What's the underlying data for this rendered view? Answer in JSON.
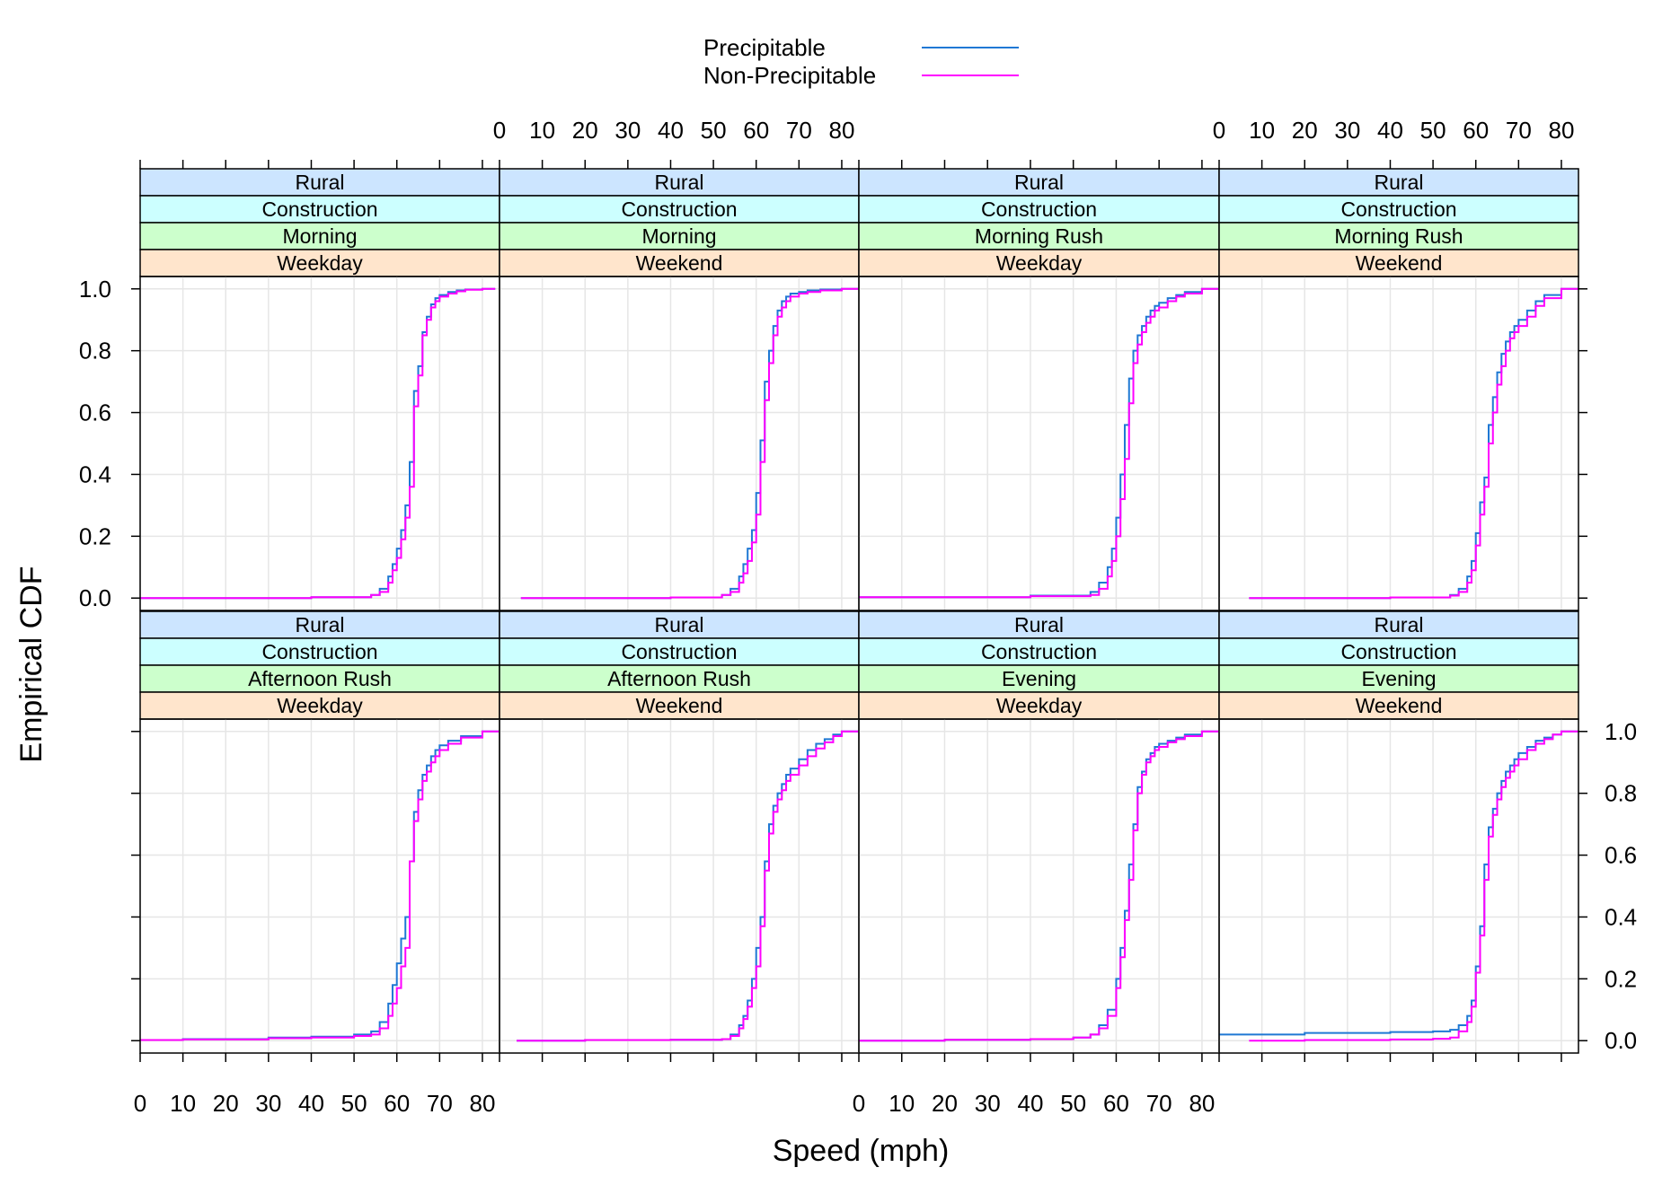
{
  "chart_data": {
    "type": "line",
    "subtype": "ecdf-step-trellis",
    "xlabel": "Speed (mph)",
    "ylabel": "Empirical CDF",
    "xlim": [
      0,
      84
    ],
    "ylim": [
      -0.04,
      1.04
    ],
    "x_ticks": [
      0,
      10,
      20,
      30,
      40,
      50,
      60,
      70,
      80
    ],
    "y_ticks": [
      0.0,
      0.2,
      0.4,
      0.6,
      0.8,
      1.0
    ],
    "x_tick_labels": [
      "0",
      "10",
      "20",
      "30",
      "40",
      "50",
      "60",
      "70",
      "80"
    ],
    "y_tick_labels": [
      "0.0",
      "0.2",
      "0.4",
      "0.6",
      "0.8",
      "1.0"
    ],
    "grid": true,
    "legend": {
      "position": "top",
      "entries": [
        {
          "name": "Precipitable",
          "color": "#1f78d4"
        },
        {
          "name": "Non-Precipitable",
          "color": "#ff00ff"
        }
      ]
    },
    "strip_colors": [
      "#cce5ff",
      "#ccffff",
      "#ccffcc",
      "#ffe5cc"
    ],
    "panels": [
      {
        "strips": [
          "Rural",
          "Construction",
          "Morning",
          "Weekday"
        ],
        "series": [
          {
            "name": "Precipitable",
            "x": [
              0,
              40,
              54,
              56,
              58,
              59,
              60,
              61,
              62,
              63,
              64,
              65,
              66,
              67,
              68,
              69,
              70,
              72,
              74,
              76,
              80,
              83
            ],
            "y": [
              0.0,
              0.003,
              0.01,
              0.03,
              0.07,
              0.11,
              0.16,
              0.22,
              0.3,
              0.44,
              0.67,
              0.75,
              0.86,
              0.91,
              0.95,
              0.97,
              0.98,
              0.99,
              0.995,
              0.998,
              1.0,
              1.0
            ]
          },
          {
            "name": "Non-Precipitable",
            "x": [
              0,
              40,
              54,
              56,
              58,
              59,
              60,
              61,
              62,
              63,
              64,
              65,
              66,
              67,
              68,
              69,
              70,
              72,
              74,
              76,
              80,
              83
            ],
            "y": [
              0.0,
              0.003,
              0.01,
              0.02,
              0.05,
              0.09,
              0.13,
              0.19,
              0.26,
              0.36,
              0.62,
              0.72,
              0.85,
              0.9,
              0.94,
              0.96,
              0.975,
              0.985,
              0.992,
              0.997,
              1.0,
              1.0
            ]
          }
        ]
      },
      {
        "strips": [
          "Rural",
          "Construction",
          "Morning",
          "Weekend"
        ],
        "series": [
          {
            "name": "Precipitable",
            "x": [
              5,
              40,
              52,
              54,
              56,
              57,
              58,
              59,
              60,
              61,
              62,
              63,
              64,
              65,
              66,
              67,
              68,
              70,
              72,
              75,
              80,
              84
            ],
            "y": [
              0.0,
              0.002,
              0.01,
              0.03,
              0.07,
              0.11,
              0.16,
              0.22,
              0.34,
              0.51,
              0.7,
              0.8,
              0.88,
              0.93,
              0.96,
              0.975,
              0.985,
              0.99,
              0.995,
              0.998,
              1.0,
              1.0
            ]
          },
          {
            "name": "Non-Precipitable",
            "x": [
              5,
              40,
              52,
              54,
              56,
              57,
              58,
              59,
              60,
              61,
              62,
              63,
              64,
              65,
              66,
              67,
              68,
              70,
              72,
              75,
              80,
              84
            ],
            "y": [
              0.0,
              0.002,
              0.01,
              0.02,
              0.05,
              0.08,
              0.12,
              0.18,
              0.27,
              0.44,
              0.64,
              0.76,
              0.85,
              0.91,
              0.94,
              0.96,
              0.975,
              0.985,
              0.99,
              0.995,
              1.0,
              1.0
            ]
          }
        ]
      },
      {
        "strips": [
          "Rural",
          "Construction",
          "Morning Rush",
          "Weekday"
        ],
        "series": [
          {
            "name": "Precipitable",
            "x": [
              0,
              40,
              54,
              56,
              58,
              59,
              60,
              61,
              62,
              63,
              64,
              65,
              66,
              67,
              68,
              69,
              70,
              72,
              74,
              76,
              80,
              84
            ],
            "y": [
              0.003,
              0.008,
              0.02,
              0.05,
              0.1,
              0.16,
              0.26,
              0.4,
              0.56,
              0.71,
              0.8,
              0.85,
              0.88,
              0.91,
              0.93,
              0.945,
              0.955,
              0.97,
              0.98,
              0.99,
              1.0,
              1.0
            ]
          },
          {
            "name": "Non-Precipitable",
            "x": [
              0,
              40,
              54,
              56,
              58,
              59,
              60,
              61,
              62,
              63,
              64,
              65,
              66,
              67,
              68,
              69,
              70,
              72,
              74,
              76,
              80,
              84
            ],
            "y": [
              0.003,
              0.006,
              0.01,
              0.03,
              0.07,
              0.12,
              0.2,
              0.32,
              0.45,
              0.63,
              0.76,
              0.82,
              0.86,
              0.89,
              0.91,
              0.93,
              0.94,
              0.96,
              0.975,
              0.985,
              1.0,
              1.0
            ]
          }
        ]
      },
      {
        "strips": [
          "Rural",
          "Construction",
          "Morning Rush",
          "Weekend"
        ],
        "series": [
          {
            "name": "Precipitable",
            "x": [
              7,
              40,
              54,
              56,
              58,
              59,
              60,
              61,
              62,
              63,
              64,
              65,
              66,
              67,
              68,
              69,
              70,
              72,
              74,
              76,
              80,
              84
            ],
            "y": [
              0.0,
              0.002,
              0.01,
              0.03,
              0.07,
              0.12,
              0.21,
              0.31,
              0.39,
              0.56,
              0.65,
              0.73,
              0.79,
              0.83,
              0.86,
              0.88,
              0.9,
              0.93,
              0.96,
              0.98,
              1.0,
              1.0
            ]
          },
          {
            "name": "Non-Precipitable",
            "x": [
              7,
              40,
              54,
              56,
              58,
              59,
              60,
              61,
              62,
              63,
              64,
              65,
              66,
              67,
              68,
              69,
              70,
              72,
              74,
              76,
              80,
              84
            ],
            "y": [
              0.0,
              0.002,
              0.008,
              0.02,
              0.05,
              0.09,
              0.17,
              0.27,
              0.36,
              0.5,
              0.6,
              0.69,
              0.75,
              0.8,
              0.84,
              0.86,
              0.88,
              0.91,
              0.945,
              0.97,
              1.0,
              1.0
            ]
          }
        ]
      },
      {
        "strips": [
          "Rural",
          "Construction",
          "Afternoon Rush",
          "Weekday"
        ],
        "series": [
          {
            "name": "Precipitable",
            "x": [
              0,
              10,
              30,
              40,
              50,
              54,
              56,
              58,
              59,
              60,
              61,
              62,
              63,
              64,
              65,
              66,
              67,
              68,
              69,
              70,
              72,
              75,
              80,
              84
            ],
            "y": [
              0.002,
              0.005,
              0.01,
              0.013,
              0.02,
              0.03,
              0.06,
              0.12,
              0.18,
              0.25,
              0.33,
              0.4,
              0.58,
              0.74,
              0.81,
              0.86,
              0.89,
              0.92,
              0.94,
              0.955,
              0.97,
              0.985,
              1.0,
              1.0
            ]
          },
          {
            "name": "Non-Precipitable",
            "x": [
              0,
              10,
              30,
              40,
              50,
              54,
              56,
              58,
              59,
              60,
              61,
              62,
              63,
              64,
              65,
              66,
              67,
              68,
              69,
              70,
              72,
              75,
              80,
              84
            ],
            "y": [
              0.002,
              0.004,
              0.008,
              0.01,
              0.015,
              0.02,
              0.04,
              0.08,
              0.12,
              0.17,
              0.24,
              0.3,
              0.58,
              0.71,
              0.78,
              0.84,
              0.87,
              0.9,
              0.92,
              0.94,
              0.96,
              0.98,
              1.0,
              1.0
            ]
          }
        ]
      },
      {
        "strips": [
          "Rural",
          "Construction",
          "Afternoon Rush",
          "Weekend"
        ],
        "series": [
          {
            "name": "Precipitable",
            "x": [
              4,
              20,
              40,
              52,
              54,
              56,
              57,
              58,
              59,
              60,
              61,
              62,
              63,
              64,
              65,
              66,
              67,
              68,
              70,
              72,
              74,
              76,
              78,
              80,
              84
            ],
            "y": [
              0.0,
              0.002,
              0.003,
              0.005,
              0.02,
              0.05,
              0.08,
              0.13,
              0.2,
              0.3,
              0.4,
              0.58,
              0.7,
              0.76,
              0.8,
              0.83,
              0.86,
              0.88,
              0.91,
              0.94,
              0.96,
              0.975,
              0.99,
              1.0,
              1.0
            ]
          },
          {
            "name": "Non-Precipitable",
            "x": [
              4,
              20,
              40,
              52,
              54,
              56,
              57,
              58,
              59,
              60,
              61,
              62,
              63,
              64,
              65,
              66,
              67,
              68,
              70,
              72,
              74,
              76,
              78,
              80,
              84
            ],
            "y": [
              0.0,
              0.002,
              0.003,
              0.005,
              0.015,
              0.04,
              0.07,
              0.11,
              0.17,
              0.24,
              0.37,
              0.55,
              0.67,
              0.74,
              0.78,
              0.81,
              0.84,
              0.86,
              0.89,
              0.92,
              0.945,
              0.965,
              0.985,
              1.0,
              1.0
            ]
          }
        ]
      },
      {
        "strips": [
          "Rural",
          "Construction",
          "Evening",
          "Weekday"
        ],
        "series": [
          {
            "name": "Precipitable",
            "x": [
              0,
              20,
              40,
              50,
              54,
              56,
              58,
              60,
              61,
              62,
              63,
              64,
              65,
              66,
              67,
              68,
              69,
              70,
              72,
              74,
              76,
              80,
              84
            ],
            "y": [
              0.0,
              0.003,
              0.005,
              0.01,
              0.02,
              0.05,
              0.1,
              0.2,
              0.3,
              0.42,
              0.57,
              0.7,
              0.82,
              0.87,
              0.91,
              0.93,
              0.95,
              0.96,
              0.97,
              0.98,
              0.99,
              1.0,
              1.0
            ]
          },
          {
            "name": "Non-Precipitable",
            "x": [
              0,
              20,
              40,
              50,
              54,
              56,
              58,
              60,
              61,
              62,
              63,
              64,
              65,
              66,
              67,
              68,
              69,
              70,
              72,
              74,
              76,
              80,
              84
            ],
            "y": [
              0.0,
              0.003,
              0.005,
              0.01,
              0.02,
              0.04,
              0.08,
              0.17,
              0.27,
              0.39,
              0.52,
              0.68,
              0.8,
              0.86,
              0.9,
              0.92,
              0.94,
              0.95,
              0.965,
              0.975,
              0.985,
              1.0,
              1.0
            ]
          }
        ]
      },
      {
        "strips": [
          "Rural",
          "Construction",
          "Evening",
          "Weekend"
        ],
        "series": [
          {
            "name": "Precipitable",
            "x": [
              0,
              20,
              40,
              50,
              54,
              56,
              58,
              59,
              60,
              61,
              62,
              63,
              64,
              65,
              66,
              67,
              68,
              69,
              70,
              72,
              74,
              76,
              78,
              80,
              84
            ],
            "y": [
              0.02,
              0.025,
              0.028,
              0.03,
              0.035,
              0.05,
              0.08,
              0.13,
              0.24,
              0.37,
              0.57,
              0.69,
              0.75,
              0.8,
              0.84,
              0.87,
              0.89,
              0.91,
              0.93,
              0.95,
              0.97,
              0.98,
              0.99,
              1.0,
              1.0
            ]
          },
          {
            "name": "Non-Precipitable",
            "x": [
              7,
              20,
              40,
              50,
              54,
              56,
              58,
              59,
              60,
              61,
              62,
              63,
              64,
              65,
              66,
              67,
              68,
              69,
              70,
              72,
              74,
              76,
              78,
              80,
              84
            ],
            "y": [
              0.0,
              0.002,
              0.004,
              0.006,
              0.01,
              0.03,
              0.06,
              0.11,
              0.22,
              0.34,
              0.52,
              0.66,
              0.73,
              0.78,
              0.82,
              0.85,
              0.87,
              0.89,
              0.91,
              0.94,
              0.96,
              0.975,
              0.99,
              1.0,
              1.0
            ]
          }
        ]
      }
    ]
  }
}
